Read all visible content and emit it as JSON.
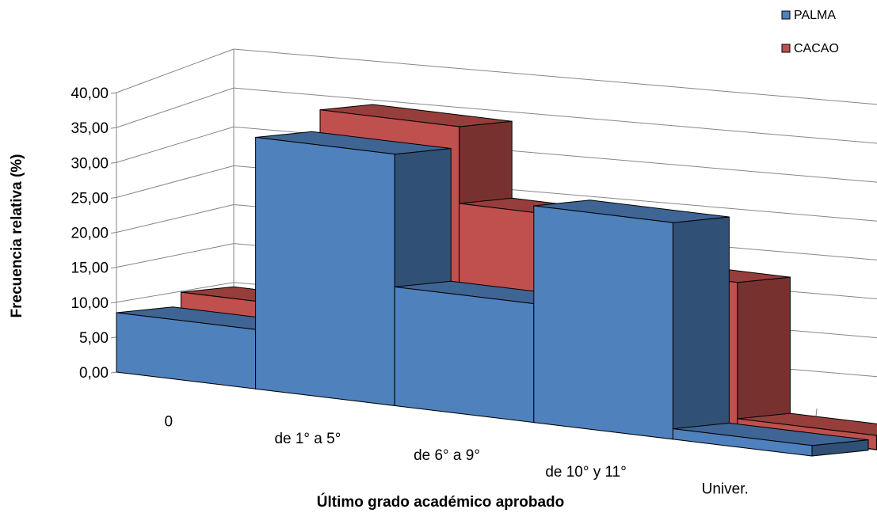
{
  "chart_data": {
    "type": "bar",
    "variant": "3d-clustered-depth",
    "categories": [
      "0",
      "de 1° a 5°",
      "de 6° a 9°",
      "de 10° y 11°",
      "Univer."
    ],
    "series": [
      {
        "name": "PALMA",
        "values": [
          8.5,
          36.0,
          17.0,
          31.0,
          1.5
        ],
        "color": "#4F81BD"
      },
      {
        "name": "CACAO",
        "values": [
          10.5,
          39.0,
          28.0,
          21.5,
          2.0
        ],
        "color": "#C0504D"
      }
    ],
    "xlabel": "Último grado académico aprobado",
    "ylabel": "Frecuencia relativa (%)",
    "ylim": [
      0,
      40
    ],
    "yticks": [
      "0,00",
      "5,00",
      "10,00",
      "15,00",
      "20,00",
      "25,00",
      "30,00",
      "35,00",
      "40,00"
    ],
    "grid": true,
    "legend": "top-right"
  }
}
